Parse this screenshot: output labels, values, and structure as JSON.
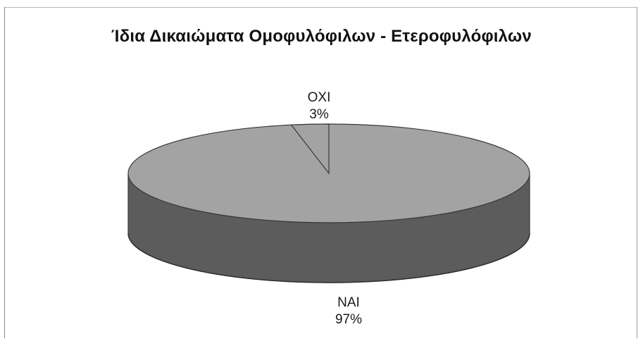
{
  "chart_data": {
    "type": "pie",
    "title": "Ίδια Δικαιώματα Ομοφυλόφιλων - Ετεροφυλόφιλων",
    "slices": [
      {
        "label": "ΝΑΙ",
        "value": 97,
        "value_label": "97%"
      },
      {
        "label": "ΟΧΙ",
        "value": 3,
        "value_label": "3%"
      }
    ],
    "style": "3d",
    "legend": "none",
    "colors": {
      "top": "#a3a3a3",
      "side": "#5c5c5c",
      "outline": "#3a3a3a"
    }
  }
}
